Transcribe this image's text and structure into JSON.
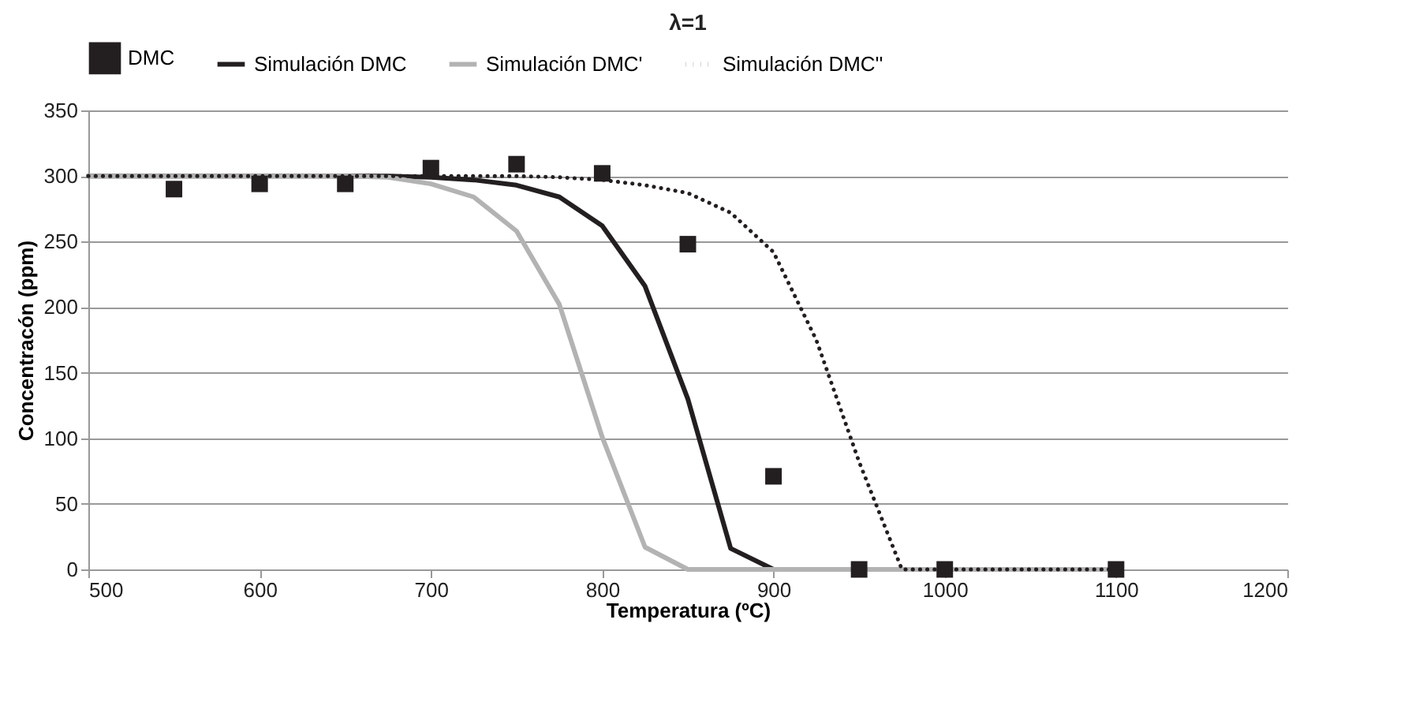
{
  "chart_data": {
    "type": "line",
    "title": "λ=1",
    "xlabel": "Temperatura (ºC)",
    "ylabel": "Concentracón (ppm)",
    "xlim": [
      500,
      1200
    ],
    "xticks": [
      500,
      600,
      700,
      800,
      900,
      {
        "value": 1000,
        "label": "1000"
      },
      {
        "value": 1100,
        "label": "1100"
      },
      {
        "value": 1200,
        "label": "1200"
      }
    ],
    "ylim": [
      0,
      350
    ],
    "yticks": [
      0,
      50,
      100,
      150,
      200,
      250,
      300,
      350
    ],
    "grid": "y",
    "legend": "top",
    "series": [
      {
        "name": "DMC",
        "type": "scatter",
        "marker": "square",
        "color": "#231f20",
        "x": [
          550,
          600,
          650,
          700,
          750,
          800,
          850,
          900,
          950,
          1000,
          1100
        ],
        "values": [
          290,
          294,
          294,
          306,
          309,
          302,
          248,
          71,
          0,
          0,
          0
        ]
      },
      {
        "name": "Simulación DMC",
        "color": "#231f20",
        "x": [
          500,
          525,
          550,
          575,
          600,
          625,
          650,
          675,
          700,
          725,
          750,
          775,
          800,
          825,
          850,
          875,
          900,
          925,
          950,
          975,
          1000,
          1025,
          1050,
          1075,
          1100
        ],
        "values": [
          300,
          300,
          300,
          300,
          300,
          300,
          300,
          300,
          299,
          297,
          293,
          284,
          262,
          216,
          130,
          16,
          0,
          0,
          0,
          0,
          0,
          0,
          0,
          0,
          0
        ]
      },
      {
        "name": "Simulación DMC'",
        "color": "#b3b3b3",
        "x": [
          500,
          525,
          550,
          575,
          600,
          625,
          650,
          675,
          700,
          725,
          750,
          775,
          800,
          825,
          850,
          875,
          900,
          925,
          950,
          975,
          1000,
          1025,
          1050,
          1075,
          1100
        ],
        "values": [
          300,
          300,
          300,
          300,
          300,
          300,
          300,
          299,
          294,
          284,
          258,
          202,
          101,
          17,
          0,
          0,
          0,
          0,
          0,
          0,
          0,
          0,
          0,
          0,
          0
        ]
      },
      {
        "name": "Simulación DMC''",
        "line_style": "dotted",
        "color": "#231f20",
        "x": [
          500,
          525,
          550,
          575,
          600,
          625,
          650,
          675,
          700,
          725,
          750,
          775,
          800,
          825,
          850,
          875,
          900,
          925,
          950,
          975,
          1000,
          1025,
          1050,
          1075,
          1100
        ],
        "values": [
          300,
          300,
          300,
          300,
          300,
          300,
          300,
          300,
          300,
          300,
          300,
          299,
          297,
          293,
          287,
          272,
          242,
          175,
          82,
          0,
          0,
          0,
          0,
          0,
          0
        ]
      }
    ]
  }
}
